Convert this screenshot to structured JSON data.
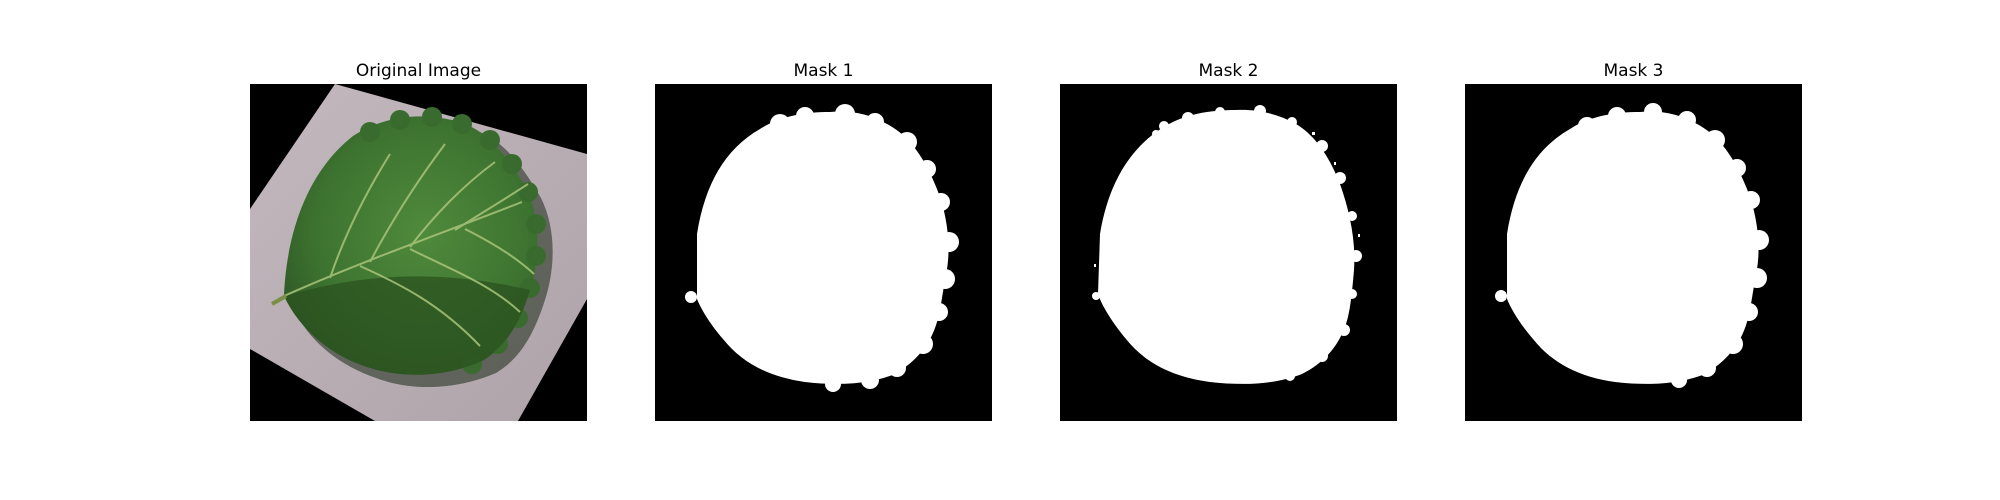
{
  "figure": {
    "panels": [
      {
        "title": "Original Image",
        "content": "strawberry-leaf-photo"
      },
      {
        "title": "Mask 1",
        "content": "binary-segmentation-mask"
      },
      {
        "title": "Mask 2",
        "content": "binary-segmentation-mask"
      },
      {
        "title": "Mask 3",
        "content": "binary-segmentation-mask"
      }
    ],
    "colors": {
      "background": "#ffffff",
      "mask_background": "#000000",
      "mask_foreground": "#ffffff",
      "leaf_dark": "#2f5a26",
      "leaf_light": "#4f8a3c",
      "paper": "#b8adb4"
    }
  }
}
